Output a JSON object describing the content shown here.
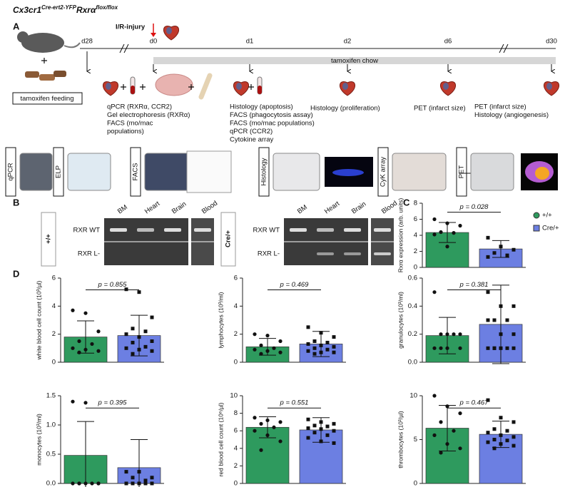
{
  "figure": {
    "title": [
      "Cx3cr1",
      "Cre-ert2-YFP",
      "Rxrα",
      "flox/flox"
    ],
    "panels": [
      "A",
      "B",
      "C",
      "D"
    ],
    "timeline": {
      "injury": "I/R-injury",
      "chow": "tamoxifen chow",
      "feeding": "tamoxifen feeding",
      "days": [
        "d28",
        "d0",
        "d1",
        "d2",
        "d6",
        "d30"
      ],
      "readouts": [
        [
          "qPCR (RXRα, CCR2)",
          "Gel electrophoresis (RXRα)",
          "FACS (mo/mac",
          "populations)"
        ],
        [
          "Histology (apoptosis)",
          "FACS (phagocytosis assay)",
          "FACS (mo/mac populations)",
          "qPCR (CCR2)",
          "Cytokine array"
        ],
        [
          "Histology (proliferation)"
        ],
        [
          "PET (infarct size)"
        ],
        [
          "PET (infarct size)",
          "Histology (angiogenesis)"
        ]
      ]
    },
    "methods": [
      "qPCR",
      "ELP",
      "FACS",
      "Histology",
      "CyK array",
      "PET"
    ],
    "gels": [
      {
        "genotype": "+/+",
        "lanes": [
          "BM",
          "Heart",
          "Brain",
          "Blood"
        ],
        "bands": [
          "RXR WT",
          "RXR L-"
        ]
      },
      {
        "genotype": "Cre/+",
        "lanes": [
          "BM",
          "Heart",
          "Brain",
          "Blood"
        ],
        "bands": [
          "RXR WT",
          "RXR L-"
        ]
      }
    ]
  },
  "chart_data": [
    {
      "type": "bar",
      "ylabel": "Rxrα expression (arb. units)",
      "annotation": "p = 0.028",
      "ylim": [
        0,
        8
      ],
      "yticks": [
        0,
        2,
        4,
        6,
        8
      ],
      "series": [
        {
          "name": "+/+",
          "color": "#2e9a5e",
          "values": [
            4.35
          ],
          "errors": [
            1.25
          ],
          "points": [
            6.0,
            5.5,
            5.2,
            4.4,
            4.3,
            4.1,
            2.6
          ]
        },
        {
          "name": "Cre/+",
          "color": "#6c7fe2",
          "values": [
            2.3
          ],
          "errors": [
            1.05
          ],
          "points": [
            3.7,
            2.6,
            2.2,
            1.8,
            1.5,
            1.3
          ]
        }
      ]
    },
    {
      "type": "bar",
      "ylabel": "white blood cell count (10³/µl)",
      "annotation": "p = 0.855",
      "ylim": [
        0,
        6
      ],
      "yticks": [
        0,
        2,
        4,
        6
      ],
      "series": [
        {
          "color": "#2e9a5e",
          "values": [
            1.8
          ],
          "errors": [
            1.15
          ],
          "points": [
            3.7,
            3.5,
            2.2,
            1.5,
            1.3,
            1.0,
            0.9,
            0.8,
            0.7
          ]
        },
        {
          "color": "#6c7fe2",
          "values": [
            1.9
          ],
          "errors": [
            1.45
          ],
          "points": [
            5.2,
            5.0,
            3.2,
            2.4,
            2.2,
            2.0,
            1.8,
            1.5,
            1.4,
            1.1,
            1.0,
            0.9,
            0.8,
            0.6
          ]
        }
      ]
    },
    {
      "type": "bar",
      "ylabel": "lymphocytes (10³/ml)",
      "annotation": "p = 0.469",
      "ylim": [
        0,
        6
      ],
      "yticks": [
        0,
        2,
        4,
        6
      ],
      "series": [
        {
          "color": "#2e9a5e",
          "values": [
            1.1
          ],
          "errors": [
            0.6
          ],
          "points": [
            2.0,
            1.9,
            1.5,
            1.2,
            1.0,
            0.9,
            0.8,
            0.7,
            0.6
          ]
        },
        {
          "color": "#6c7fe2",
          "values": [
            1.3
          ],
          "errors": [
            0.9
          ],
          "points": [
            2.5,
            2.1,
            1.8,
            1.5,
            1.4,
            1.3,
            1.2,
            1.1,
            1.0,
            0.9,
            0.8,
            0.7,
            0.7,
            0.6
          ]
        }
      ]
    },
    {
      "type": "bar",
      "ylabel": "granulocytes (10³/ml)",
      "annotation": "p = 0.381",
      "ylim": [
        0,
        0.6
      ],
      "yticks": [
        {
          "value": 0,
          "label": "0.0"
        },
        0.2,
        0.4,
        0.6
      ],
      "series": [
        {
          "color": "#2e9a5e",
          "values": [
            0.19
          ],
          "errors": [
            0.13
          ],
          "points": [
            0.5,
            0.2,
            0.2,
            0.2,
            0.2,
            0.1,
            0.1,
            0.1,
            0.1
          ]
        },
        {
          "color": "#6c7fe2",
          "values": [
            0.27
          ],
          "errors": [
            0.28
          ],
          "points": [
            0.5,
            0.4,
            0.4,
            0.3,
            0.3,
            0.3,
            0.2,
            0.2,
            0.1,
            0.1,
            0.1,
            0.1,
            0.1,
            0.1
          ]
        }
      ]
    },
    {
      "type": "bar",
      "ylabel": "monocytes (10³/ml)",
      "annotation": "p = 0.395",
      "ylim": [
        0,
        1.5
      ],
      "yticks": [
        {
          "value": 0,
          "label": "0.0"
        },
        0.5,
        {
          "value": 1,
          "label": "1.0"
        },
        1.5
      ],
      "series": [
        {
          "color": "#2e9a5e",
          "values": [
            0.48
          ],
          "errors": [
            0.58
          ],
          "points": [
            1.4,
            1.38,
            0,
            0,
            0,
            0,
            0,
            0,
            0
          ]
        },
        {
          "color": "#6c7fe2",
          "values": [
            0.27
          ],
          "errors": [
            0.48
          ],
          "points": [
            0.2,
            0.2,
            0.1,
            0.1,
            0.05,
            0,
            0,
            0,
            0,
            0,
            0,
            0,
            0,
            0
          ]
        }
      ]
    },
    {
      "type": "bar",
      "ylabel": "red blood cell count (10⁶/µl)",
      "annotation": "p = 0.551",
      "ylim": [
        0,
        10
      ],
      "yticks": [
        0,
        2,
        4,
        6,
        8,
        10
      ],
      "series": [
        {
          "color": "#2e9a5e",
          "values": [
            6.4
          ],
          "errors": [
            1.2
          ],
          "points": [
            7.5,
            7.2,
            7.0,
            6.8,
            6.4,
            6.0,
            5.5,
            4.8,
            3.8
          ]
        },
        {
          "color": "#6c7fe2",
          "values": [
            6.1
          ],
          "errors": [
            1.4
          ],
          "points": [
            7.3,
            7.0,
            6.8,
            6.6,
            6.5,
            6.3,
            6.2,
            6.0,
            5.8,
            5.5,
            5.2,
            4.8,
            4.6
          ]
        }
      ]
    },
    {
      "type": "bar",
      "ylabel": "thrombocytes (10³/µl)",
      "annotation": "p = 0.467",
      "ylim": [
        0,
        10
      ],
      "yticks": [
        0,
        5,
        10
      ],
      "series": [
        {
          "color": "#2e9a5e",
          "values": [
            6.3
          ],
          "errors": [
            2.6
          ],
          "points": [
            10,
            8.8,
            8.0,
            7.0,
            6.0,
            5.5,
            4.5,
            4.0,
            3.5
          ]
        },
        {
          "color": "#6c7fe2",
          "values": [
            5.6
          ],
          "errors": [
            1.5
          ],
          "points": [
            9.5,
            7.5,
            7.0,
            6.2,
            6.0,
            5.8,
            5.5,
            5.3,
            5.0,
            4.9,
            4.7,
            4.5,
            4.3,
            4.0
          ]
        }
      ]
    }
  ]
}
